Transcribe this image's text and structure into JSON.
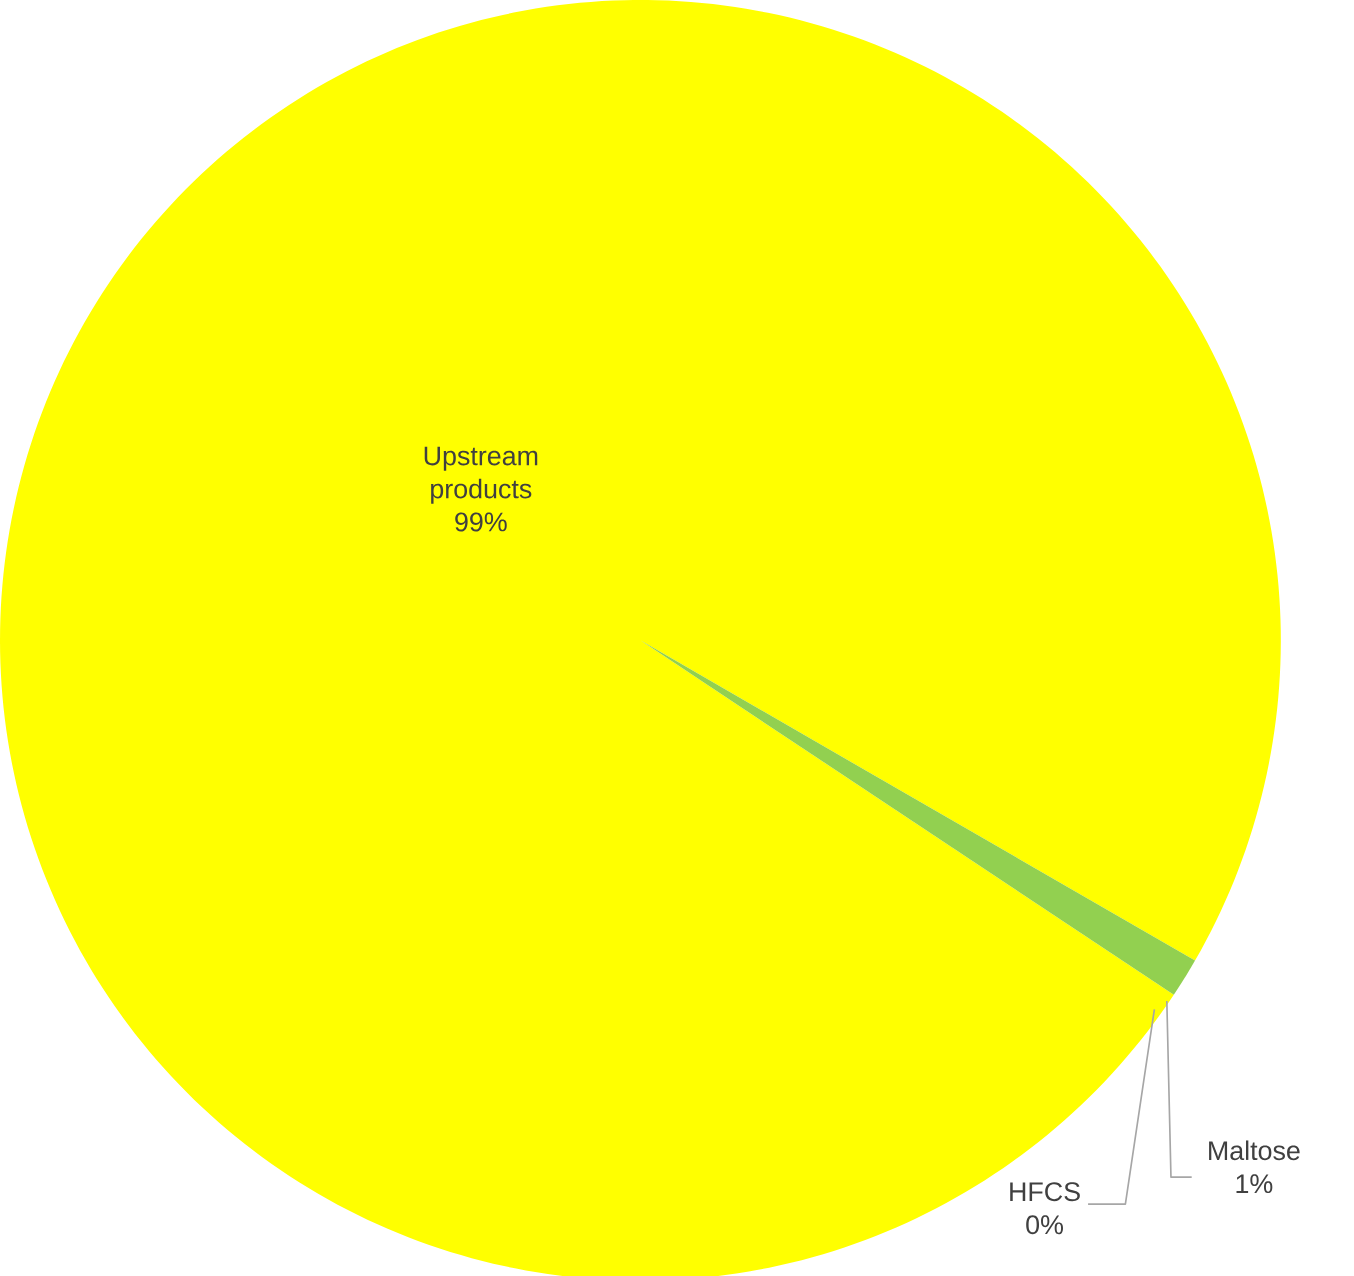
{
  "chart_data": {
    "type": "pie",
    "categories": [
      "Upstream products",
      "HFCS",
      "Maltose"
    ],
    "values": [
      99,
      0,
      1
    ],
    "value_labels": [
      "99%",
      "0%",
      "1%"
    ],
    "colors": [
      "#ffff00",
      "#00b0f0",
      "#92d050"
    ]
  }
}
